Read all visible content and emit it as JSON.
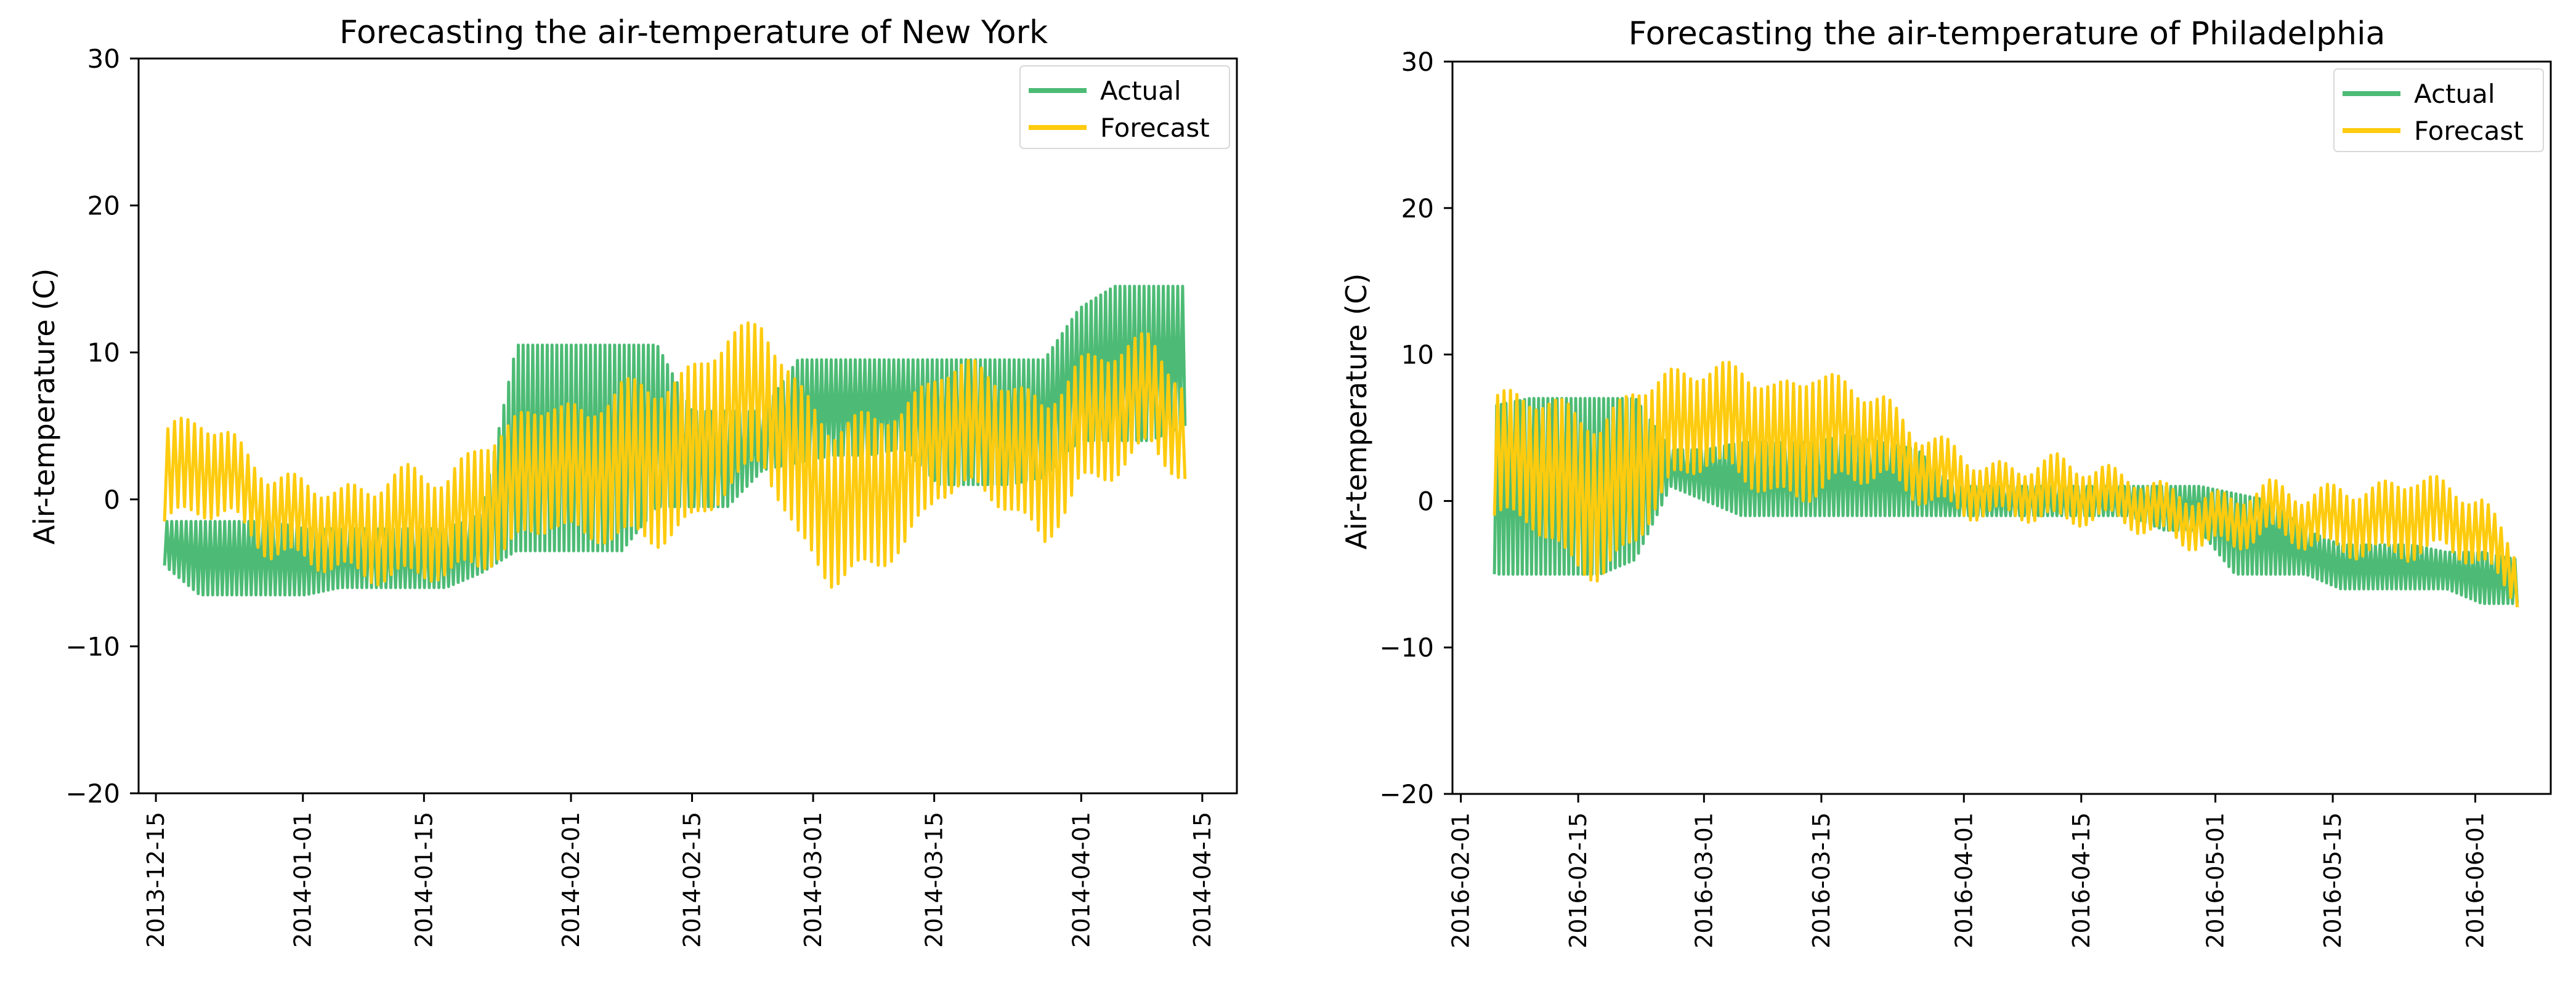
{
  "figure": {
    "background": "#ffffff"
  },
  "colors": {
    "actual": "#4dbb75",
    "forecast": "#fecb0e",
    "axis": "#000000",
    "legend_border": "#d8d8d8"
  },
  "chart_data": [
    {
      "type": "line",
      "title": "Forecasting the air-temperature of New York",
      "ylabel": "Air-temperature  (C)",
      "xlabel": "",
      "ylim": [
        -20,
        30
      ],
      "yticks": [
        -20,
        -10,
        0,
        10,
        20,
        30
      ],
      "ytick_labels": [
        "−20",
        "−10",
        "0",
        "10",
        "20",
        "30"
      ],
      "xlim": [
        "2013-12-13",
        "2014-04-19"
      ],
      "xticks": [
        "2013-12-15",
        "2014-01-01",
        "2014-01-15",
        "2014-02-01",
        "2014-02-15",
        "2014-03-01",
        "2014-03-15",
        "2014-04-01",
        "2014-04-15"
      ],
      "xtick_labels": [
        "2013-12-15",
        "2014-01-01",
        "2014-01-15",
        "2014-02-01",
        "2014-02-15",
        "2014-03-01",
        "2014-03-15",
        "2014-04-01",
        "2014-04-15"
      ],
      "legend": {
        "entries": [
          "Actual",
          "Forecast"
        ],
        "placement": "top-right"
      },
      "series": [
        {
          "name": "Actual",
          "color": "#4dbb75",
          "x_start": "2013-12-16",
          "x_end": "2014-04-13",
          "cycles_per_day": 1.8,
          "low": [
            -4.5,
            -6.5,
            -6.5,
            -6.5,
            -6.5,
            -6,
            -6,
            -6,
            -6,
            -5,
            -3.5,
            -3.5,
            -3.5,
            -3.5,
            -0.5,
            -0.5,
            -0.5,
            2,
            2.5,
            3,
            3,
            3.5,
            1,
            1,
            1,
            1.5,
            4,
            4,
            4,
            5
          ],
          "high": [
            -1.5,
            -1.5,
            -1.5,
            -1.5,
            -2,
            -2,
            -2,
            -2,
            -2,
            -1,
            10.5,
            10.5,
            10.5,
            10.5,
            10.5,
            6,
            6,
            6,
            9.5,
            9.5,
            9.5,
            9.5,
            9.5,
            9.5,
            9.5,
            9.5,
            13,
            14.5,
            14.5,
            14.5
          ]
        },
        {
          "name": "Forecast",
          "color": "#fecb0e",
          "x_start": "2013-12-16",
          "x_end": "2014-04-13",
          "cycles_per_day": 1.3,
          "center": [
            1.5,
            2,
            1,
            -1,
            -1,
            -2,
            -2.5,
            -2,
            -2,
            0,
            1.5,
            2.5,
            1,
            2.5,
            2.5,
            4,
            6,
            7,
            2,
            -0.5,
            1,
            1.5,
            4.5,
            4.5,
            3.5,
            2,
            5.5,
            6,
            7,
            4
          ],
          "amplitude": [
            3,
            3,
            2.5,
            2.5,
            2.5,
            2.5,
            3,
            3.5,
            3,
            4,
            4,
            4,
            4,
            5,
            5,
            5,
            5,
            4.5,
            5,
            5,
            5,
            4.5,
            4,
            4,
            4,
            4.5,
            4,
            4,
            3.5,
            3
          ]
        }
      ]
    },
    {
      "type": "line",
      "title": "Forecasting the air-temperature of Philadelphia",
      "ylabel": "Air-temperature  (C)",
      "xlabel": "",
      "ylim": [
        -20,
        30
      ],
      "yticks": [
        -20,
        -10,
        0,
        10,
        20,
        30
      ],
      "ytick_labels": [
        "−20",
        "−10",
        "0",
        "10",
        "20",
        "30"
      ],
      "xlim": [
        "2016-01-31",
        "2016-06-10"
      ],
      "xticks": [
        "2016-02-01",
        "2016-02-15",
        "2016-03-01",
        "2016-03-15",
        "2016-04-01",
        "2016-04-15",
        "2016-05-01",
        "2016-05-15",
        "2016-06-01"
      ],
      "xtick_labels": [
        "2016-02-01",
        "2016-02-15",
        "2016-03-01",
        "2016-03-15",
        "2016-04-01",
        "2016-04-15",
        "2016-05-01",
        "2016-05-15",
        "2016-06-01"
      ],
      "legend": {
        "entries": [
          "Actual",
          "Forecast"
        ],
        "placement": "top-right"
      },
      "series": [
        {
          "name": "Actual",
          "color": "#4dbb75",
          "x_start": "2016-02-05",
          "x_end": "2016-06-06",
          "cycles_per_day": 1.8,
          "low": [
            -5,
            -5,
            -5,
            -5,
            -4,
            1,
            0,
            -1,
            -1,
            -1,
            -1,
            -1,
            -1,
            -1,
            -1,
            -1,
            -1,
            -1,
            -1,
            -2,
            -2,
            -5,
            -5,
            -5,
            -6,
            -6,
            -6,
            -6,
            -7,
            -7
          ],
          "high": [
            6.5,
            7,
            7,
            7,
            7,
            3.5,
            3.5,
            4,
            4,
            4,
            4.5,
            4,
            3.5,
            1,
            1,
            1,
            1,
            1,
            1,
            1,
            1,
            0.5,
            0,
            -2,
            -3,
            -3,
            -3,
            -3.5,
            -3.5,
            -4
          ]
        },
        {
          "name": "Forecast",
          "color": "#fecb0e",
          "x_start": "2016-02-05",
          "x_end": "2016-06-06",
          "cycles_per_day": 1.3,
          "center": [
            3,
            2.5,
            1,
            0,
            3,
            5,
            5.5,
            5,
            4,
            5,
            5,
            4,
            2,
            1.5,
            1,
            1,
            0.5,
            0,
            0,
            -0.5,
            -1,
            -1.5,
            -1,
            -1.5,
            -1,
            -1,
            -1,
            -1.5,
            -2.5,
            -5
          ],
          "amplitude": [
            4,
            4,
            5,
            5,
            5,
            3.5,
            3,
            3.5,
            3.5,
            4,
            3,
            2.5,
            2,
            2,
            1.5,
            1.5,
            2,
            1.5,
            1.5,
            1.5,
            1.5,
            1.5,
            1.5,
            1.5,
            2,
            2,
            2.5,
            2,
            2,
            1.5
          ]
        }
      ]
    }
  ]
}
